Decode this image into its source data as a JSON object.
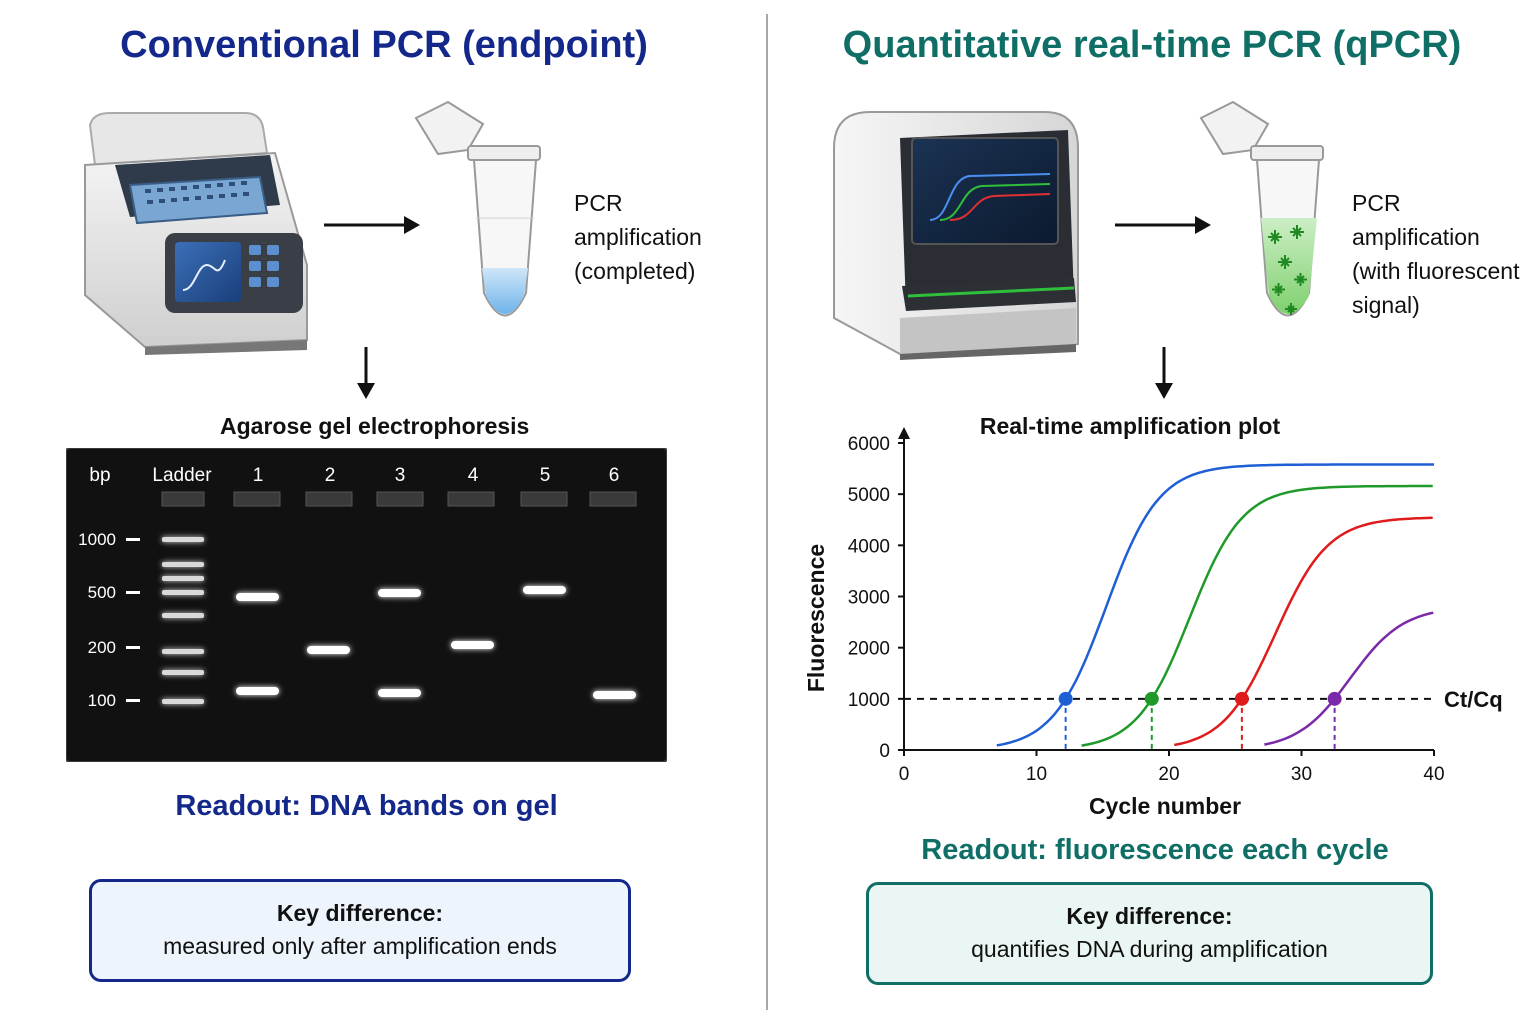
{
  "left": {
    "title": "Conventional PCR (endpoint)",
    "tube_desc": [
      "PCR",
      "amplification",
      "(completed)"
    ],
    "gel_title": "Agarose gel electrophoresis",
    "gel": {
      "bp_label": "bp",
      "ladder_label": "Ladder",
      "lanes": [
        "1",
        "2",
        "3",
        "4",
        "5",
        "6"
      ],
      "size_markers": [
        "1000",
        "500",
        "200",
        "100"
      ]
    },
    "readout": "Readout:  DNA bands on gel",
    "key_title": "Key difference:",
    "key_text": "measured only after amplification ends"
  },
  "right": {
    "title": "Quantitative real-time PCR (qPCR)",
    "tube_desc": [
      "PCR",
      "amplification",
      "(with fluorescent",
      "signal)"
    ],
    "readout": "Readout:  fluorescence each cycle",
    "key_title": "Key difference:",
    "key_text": "quantifies DNA during amplification"
  },
  "chart_data": {
    "type": "line",
    "title": "Real-time amplification plot",
    "xlabel": "Cycle number",
    "ylabel": "Fluorescence",
    "xlim": [
      0,
      40
    ],
    "ylim": [
      0,
      6000
    ],
    "xticks": [
      0,
      10,
      20,
      30,
      40
    ],
    "yticks": [
      0,
      1000,
      2000,
      3000,
      4000,
      5000,
      6000
    ],
    "threshold": {
      "value": 1000,
      "label": "Ct/Cq"
    },
    "series": [
      {
        "color": "#1f5fd6",
        "plateau": 5580,
        "ct": 12.2,
        "start": 7.0
      },
      {
        "color": "#1f9a2a",
        "plateau": 5160,
        "ct": 18.7,
        "start": 13.4
      },
      {
        "color": "#e01b1b",
        "plateau": 4550,
        "ct": 25.5,
        "start": 20.4
      },
      {
        "color": "#7a2aa8",
        "plateau": 2800,
        "ct": 32.5,
        "start": 27.2
      }
    ],
    "grid": false
  },
  "colors": {
    "left_accent": "#13288a",
    "right_accent": "#0f6f66"
  }
}
